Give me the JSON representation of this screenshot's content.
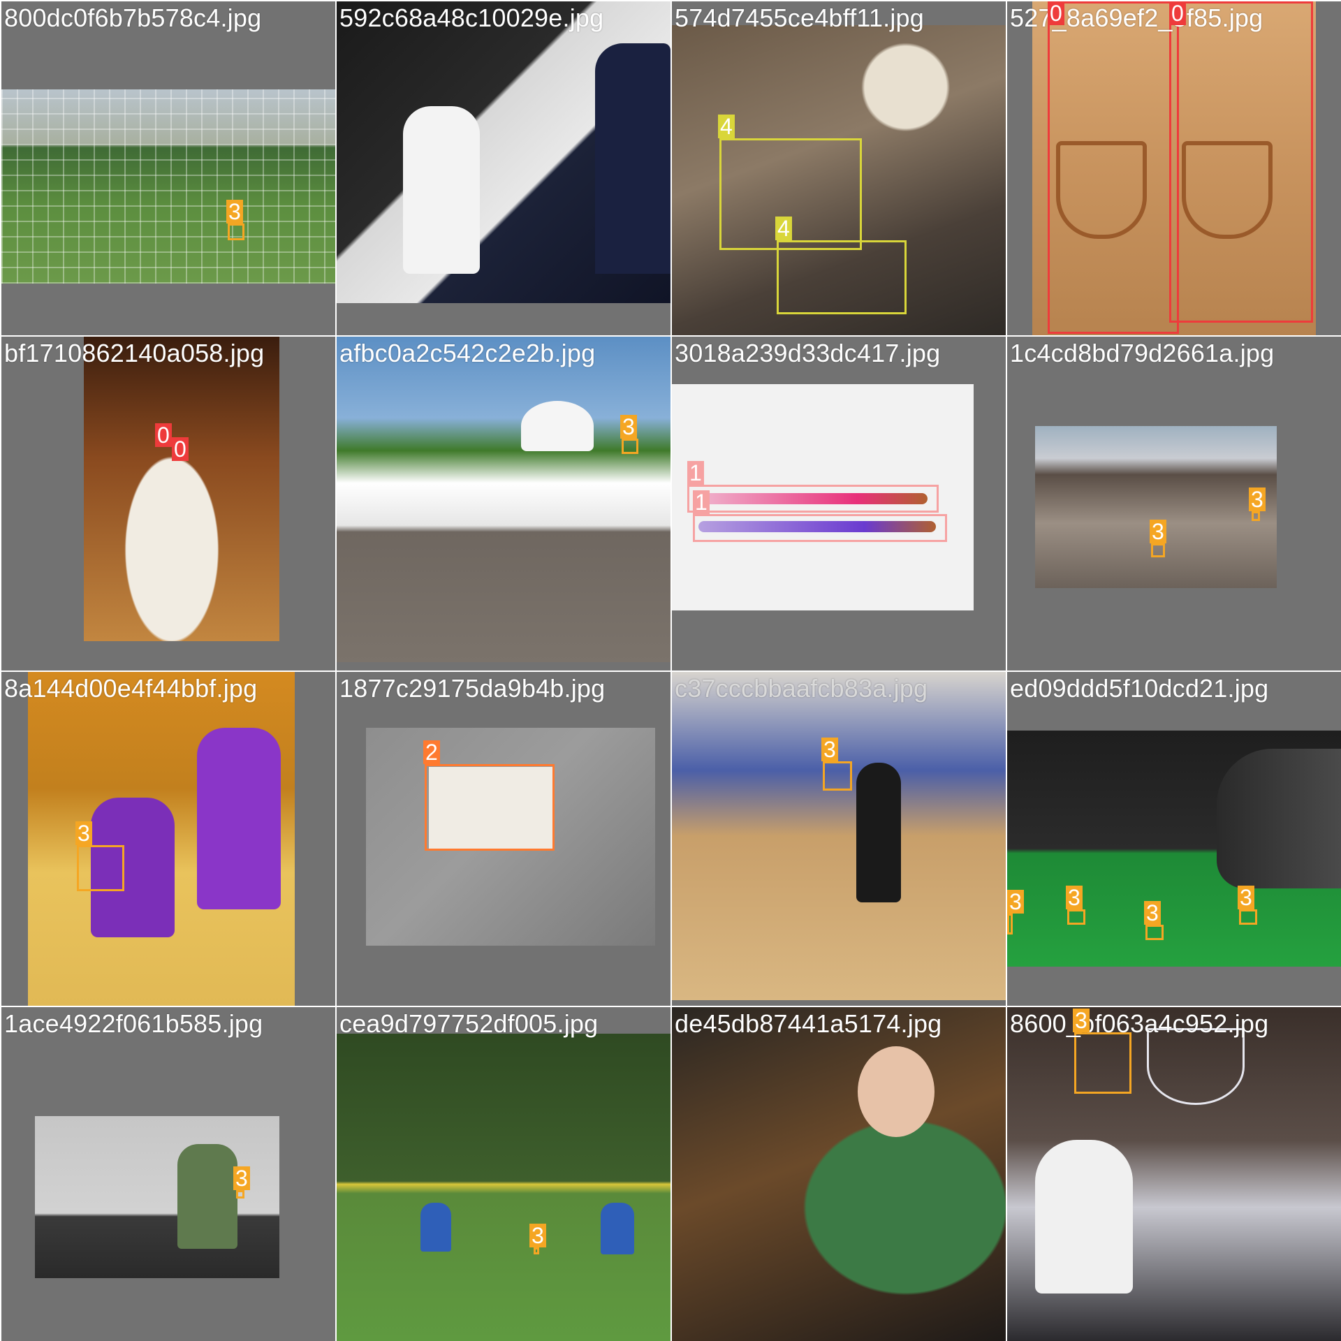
{
  "tiles": [
    {
      "filename": "800dc0f6b7b578c4.jpg",
      "labels": [
        "3"
      ]
    },
    {
      "filename": "592c68a48c10029e.jpg",
      "labels": []
    },
    {
      "filename": "574d7455ce4bff11.jpg",
      "labels": [
        "4",
        "4"
      ]
    },
    {
      "filename": "527_8a69ef2_3f85.jpg",
      "labels": [
        "0",
        "0"
      ]
    },
    {
      "filename": "bf1710862140a058.jpg",
      "labels": [
        "0",
        "0"
      ]
    },
    {
      "filename": "afbc0a2c542c2e2b.jpg",
      "labels": [
        "3"
      ]
    },
    {
      "filename": "3018a239d33dc417.jpg",
      "labels": [
        "1",
        "1"
      ]
    },
    {
      "filename": "1c4cd8bd79d2661a.jpg",
      "labels": [
        "3",
        "3"
      ]
    },
    {
      "filename": "8a144d00e4f44bbf.jpg",
      "labels": [
        "3"
      ]
    },
    {
      "filename": "1877c29175da9b4b.jpg",
      "labels": [
        "2"
      ]
    },
    {
      "filename": "c37cccbbaafcb83a.jpg",
      "labels": [
        "3"
      ]
    },
    {
      "filename": "ed09ddd5f10dcd21.jpg",
      "labels": [
        "3",
        "3",
        "3",
        "3"
      ]
    },
    {
      "filename": "1ace4922f061b585.jpg",
      "labels": [
        "3"
      ]
    },
    {
      "filename": "cea9d797752df005.jpg",
      "labels": [
        "3"
      ]
    },
    {
      "filename": "de45db87441a5174.jpg",
      "labels": []
    },
    {
      "filename": "8600_bf063a4c952.jpg",
      "labels": [
        "3"
      ]
    }
  ],
  "colors": {
    "class_0": "#ee3b3b",
    "class_1": "#f6a2a2",
    "class_2": "#ff7a2f",
    "class_3": "#f5a623",
    "class_4": "#d9d63a",
    "tile_background": "#727272"
  }
}
